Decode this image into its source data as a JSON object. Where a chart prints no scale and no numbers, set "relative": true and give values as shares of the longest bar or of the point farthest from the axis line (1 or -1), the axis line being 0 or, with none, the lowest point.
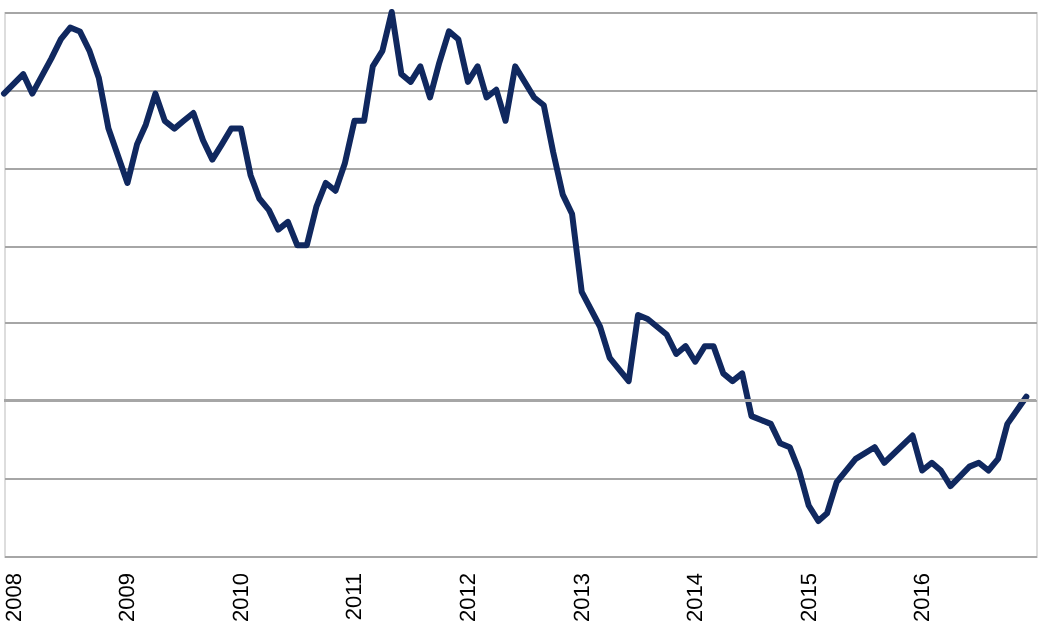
{
  "chart_data": {
    "type": "line",
    "relative": true,
    "grid": "y",
    "tick_labels": "x",
    "xlim": [
      "2007-12",
      "2017-01"
    ],
    "xticks": [
      "2008",
      "2009",
      "2010",
      "2011",
      "2012",
      "2013",
      "2014",
      "2015",
      "2016"
    ],
    "x": [
      "2007-12",
      "2008-02",
      "2008-03",
      "2008-05",
      "2008-06",
      "2008-07",
      "2008-08",
      "2008-09",
      "2008-10",
      "2008-11",
      "2009-01",
      "2009-02",
      "2009-03",
      "2009-04",
      "2009-05",
      "2009-06",
      "2009-07",
      "2009-08",
      "2009-09",
      "2009-10",
      "2009-11",
      "2009-12",
      "2010-01",
      "2010-02",
      "2010-03",
      "2010-04",
      "2010-05",
      "2010-06",
      "2010-07",
      "2010-08",
      "2010-09",
      "2010-10",
      "2010-11",
      "2010-12",
      "2011-01",
      "2011-02",
      "2011-03",
      "2011-04",
      "2011-05",
      "2011-06",
      "2011-07",
      "2011-08",
      "2011-09",
      "2011-10",
      "2011-11",
      "2011-12",
      "2012-01",
      "2012-02",
      "2012-03",
      "2012-04",
      "2012-05",
      "2012-06",
      "2012-08",
      "2012-09",
      "2012-10",
      "2012-11",
      "2012-12",
      "2013-01",
      "2013-03",
      "2013-04",
      "2013-06",
      "2013-07",
      "2013-08",
      "2013-10",
      "2013-11",
      "2013-12",
      "2014-01",
      "2014-02",
      "2014-03",
      "2014-04",
      "2014-05",
      "2014-06",
      "2014-07",
      "2014-08",
      "2014-09",
      "2014-10",
      "2014-11",
      "2014-12",
      "2015-01",
      "2015-02",
      "2015-03",
      "2015-04",
      "2015-06",
      "2015-08",
      "2015-09",
      "2015-12",
      "2016-01",
      "2016-02",
      "2016-03",
      "2016-04",
      "2016-06",
      "2016-07",
      "2016-08",
      "2016-09",
      "2016-10",
      "2016-12"
    ],
    "series": [
      {
        "color": "#10285f",
        "values": [
          0.79,
          0.84,
          0.79,
          0.88,
          0.93,
          0.96,
          0.95,
          0.9,
          0.83,
          0.7,
          0.56,
          0.66,
          0.71,
          0.79,
          0.72,
          0.7,
          0.72,
          0.74,
          0.67,
          0.62,
          0.66,
          0.7,
          0.7,
          0.58,
          0.52,
          0.49,
          0.44,
          0.46,
          0.4,
          0.4,
          0.5,
          0.56,
          0.54,
          0.61,
          0.72,
          0.72,
          0.86,
          0.9,
          1.0,
          0.84,
          0.82,
          0.86,
          0.78,
          0.87,
          0.95,
          0.93,
          0.82,
          0.86,
          0.78,
          0.8,
          0.72,
          0.86,
          0.78,
          0.76,
          0.64,
          0.53,
          0.48,
          0.28,
          0.19,
          0.11,
          0.05,
          0.22,
          0.21,
          0.17,
          0.12,
          0.14,
          0.1,
          0.14,
          0.14,
          0.07,
          0.05,
          0.07,
          -0.04,
          -0.05,
          -0.06,
          -0.11,
          -0.12,
          -0.18,
          -0.27,
          -0.31,
          -0.29,
          -0.21,
          -0.15,
          -0.12,
          -0.16,
          -0.09,
          -0.18,
          -0.16,
          -0.18,
          -0.22,
          -0.17,
          -0.16,
          -0.18,
          -0.15,
          -0.06,
          0.01
        ]
      }
    ]
  }
}
